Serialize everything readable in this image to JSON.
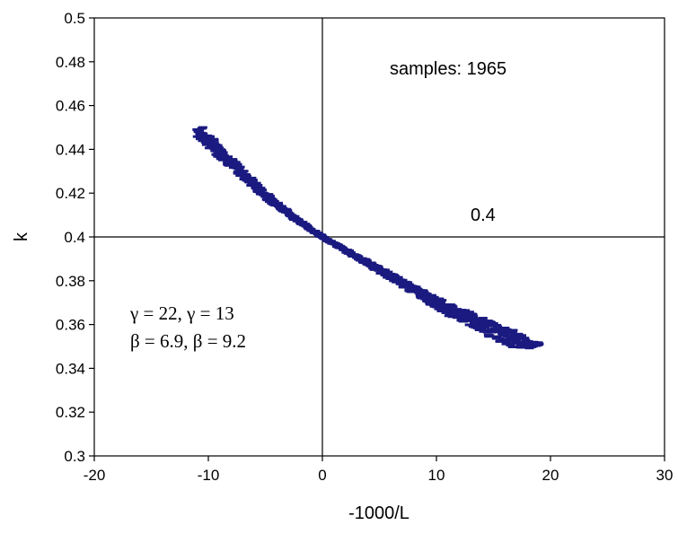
{
  "chart_data": {
    "type": "scatter",
    "title": "",
    "xlabel": "-1000/L",
    "ylabel": "k",
    "xlim": [
      -20,
      30
    ],
    "ylim": [
      0.3,
      0.5
    ],
    "xticks": [
      -20,
      -10,
      0,
      10,
      20,
      30
    ],
    "yticks": [
      0.3,
      0.32,
      0.34,
      0.36,
      0.38,
      0.4,
      0.42,
      0.44,
      0.46,
      0.48,
      0.5
    ],
    "xtick_labels": [
      "-20",
      "-10",
      "0",
      "10",
      "20",
      "30"
    ],
    "ytick_labels": [
      "0.3",
      "0.32",
      "0.34",
      "0.36",
      "0.38",
      "0.4",
      "0.42",
      "0.44",
      "0.46",
      "0.48",
      "0.5"
    ],
    "grid": false,
    "legend": "none",
    "marker_color": "#1a1a80",
    "reference_lines": {
      "x": 0,
      "y": 0.4
    },
    "series": [
      {
        "x": [
          -11,
          -10,
          -9,
          -8,
          -7,
          -6,
          -5,
          -4,
          -3,
          -2,
          -1,
          0,
          1,
          2,
          3,
          4,
          5,
          6,
          7,
          8,
          9,
          10,
          11,
          12,
          13,
          14,
          15,
          16,
          17,
          18,
          19
        ],
        "y": [
          0.449,
          0.444,
          0.439,
          0.434,
          0.429,
          0.424,
          0.419,
          0.415,
          0.411,
          0.407,
          0.4035,
          0.4,
          0.397,
          0.394,
          0.391,
          0.388,
          0.385,
          0.382,
          0.379,
          0.376,
          0.373,
          0.37,
          0.367,
          0.365,
          0.362,
          0.36,
          0.357,
          0.355,
          0.353,
          0.351,
          0.351
        ],
        "spread": [
          0.0035,
          0.0032,
          0.0028,
          0.0024,
          0.002,
          0.0017,
          0.0014,
          0.0011,
          0.0008,
          0.0005,
          0.0003,
          0.0002,
          0.0004,
          0.0006,
          0.0008,
          0.001,
          0.0012,
          0.0014,
          0.0016,
          0.0018,
          0.002,
          0.0023,
          0.0026,
          0.0029,
          0.0032,
          0.0035,
          0.0037,
          0.0039,
          0.004,
          0.002,
          0.0005
        ]
      }
    ],
    "annotations": {
      "samples": "samples: 1965",
      "ref_value": "0.4",
      "gamma": "γ = 22, γ = 13",
      "beta": "β = 6.9, β = 9.2"
    }
  }
}
